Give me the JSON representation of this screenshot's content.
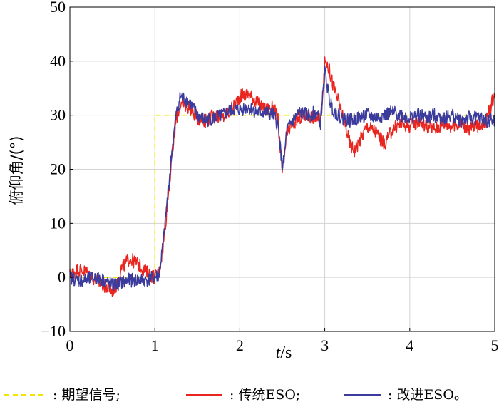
{
  "chart_data": {
    "type": "line",
    "xlabel_italic": "t",
    "xlabel_rest": "/s",
    "ylabel": "俯仰角/(°)",
    "xlim": [
      0,
      5
    ],
    "ylim": [
      -10,
      50
    ],
    "xticks": [
      "0",
      "1",
      "2",
      "3",
      "4",
      "5"
    ],
    "yticks": [
      "−10",
      "0",
      "10",
      "20",
      "30",
      "40",
      "50"
    ],
    "grid": true,
    "legend_position": "bottom",
    "series": [
      {
        "name": ": 期望信号;",
        "color": "#f2e600",
        "dash": true,
        "x": [
          0,
          1.0,
          1.0,
          5
        ],
        "y": [
          0,
          0,
          30,
          30
        ]
      },
      {
        "name": ": 传统ESO;",
        "color": "#e8251f",
        "x": [
          0,
          0.1,
          0.2,
          0.3,
          0.4,
          0.5,
          0.55,
          0.6,
          0.7,
          0.8,
          0.9,
          1.0,
          1.05,
          1.1,
          1.15,
          1.2,
          1.25,
          1.3,
          1.4,
          1.5,
          1.6,
          1.7,
          1.8,
          1.9,
          2.0,
          2.1,
          2.2,
          2.3,
          2.4,
          2.45,
          2.5,
          2.52,
          2.55,
          2.6,
          2.7,
          2.8,
          2.9,
          2.95,
          3.0,
          3.02,
          3.05,
          3.1,
          3.2,
          3.3,
          3.35,
          3.4,
          3.5,
          3.6,
          3.7,
          3.8,
          3.9,
          4.0,
          4.1,
          4.2,
          4.3,
          4.4,
          4.5,
          4.6,
          4.7,
          4.8,
          4.9,
          4.95,
          5.0
        ],
        "y": [
          0.5,
          1.5,
          1.0,
          -0.5,
          -1.5,
          -2.5,
          -1.5,
          1.5,
          3.5,
          2.5,
          1.0,
          0.0,
          1.0,
          6.0,
          14.0,
          22.0,
          29.0,
          32.0,
          31.5,
          29.5,
          29.0,
          30.0,
          29.5,
          31.0,
          33.5,
          34.0,
          32.5,
          31.0,
          31.5,
          29.0,
          19.5,
          22.0,
          26.0,
          28.0,
          29.5,
          30.0,
          29.5,
          29.0,
          39.5,
          40.0,
          38.5,
          35.5,
          30.5,
          24.5,
          23.5,
          25.0,
          28.0,
          27.0,
          24.5,
          27.5,
          28.5,
          28.0,
          29.0,
          28.0,
          27.5,
          28.5,
          28.0,
          28.5,
          27.5,
          28.0,
          29.0,
          31.5,
          34.0
        ]
      },
      {
        "name": ": 改进ESO。",
        "color": "#3b3b9e",
        "x": [
          0,
          0.1,
          0.2,
          0.3,
          0.4,
          0.5,
          0.6,
          0.7,
          0.8,
          0.9,
          1.0,
          1.05,
          1.1,
          1.15,
          1.2,
          1.25,
          1.3,
          1.35,
          1.4,
          1.5,
          1.6,
          1.7,
          1.8,
          1.9,
          2.0,
          2.1,
          2.2,
          2.3,
          2.4,
          2.45,
          2.5,
          2.52,
          2.55,
          2.6,
          2.7,
          2.8,
          2.9,
          2.95,
          3.0,
          3.02,
          3.05,
          3.1,
          3.2,
          3.3,
          3.4,
          3.5,
          3.6,
          3.7,
          3.8,
          3.9,
          4.0,
          4.1,
          4.2,
          4.3,
          4.4,
          4.5,
          4.6,
          4.7,
          4.8,
          4.9,
          5.0
        ],
        "y": [
          0.0,
          -0.5,
          -0.5,
          0.0,
          -0.5,
          -1.5,
          -1.0,
          -0.5,
          -0.5,
          -0.5,
          0.0,
          0.5,
          6.5,
          15.0,
          23.0,
          30.0,
          33.5,
          33.0,
          32.5,
          30.0,
          29.0,
          29.5,
          30.0,
          31.0,
          31.0,
          31.5,
          30.5,
          30.5,
          30.0,
          28.0,
          20.5,
          21.5,
          27.0,
          28.5,
          30.5,
          30.0,
          30.5,
          28.5,
          38.0,
          36.5,
          33.0,
          31.0,
          29.5,
          29.0,
          29.5,
          30.0,
          29.5,
          30.0,
          30.5,
          30.0,
          29.5,
          30.0,
          29.5,
          30.0,
          29.5,
          30.0,
          29.0,
          29.5,
          29.5,
          29.0,
          29.0
        ]
      }
    ]
  }
}
